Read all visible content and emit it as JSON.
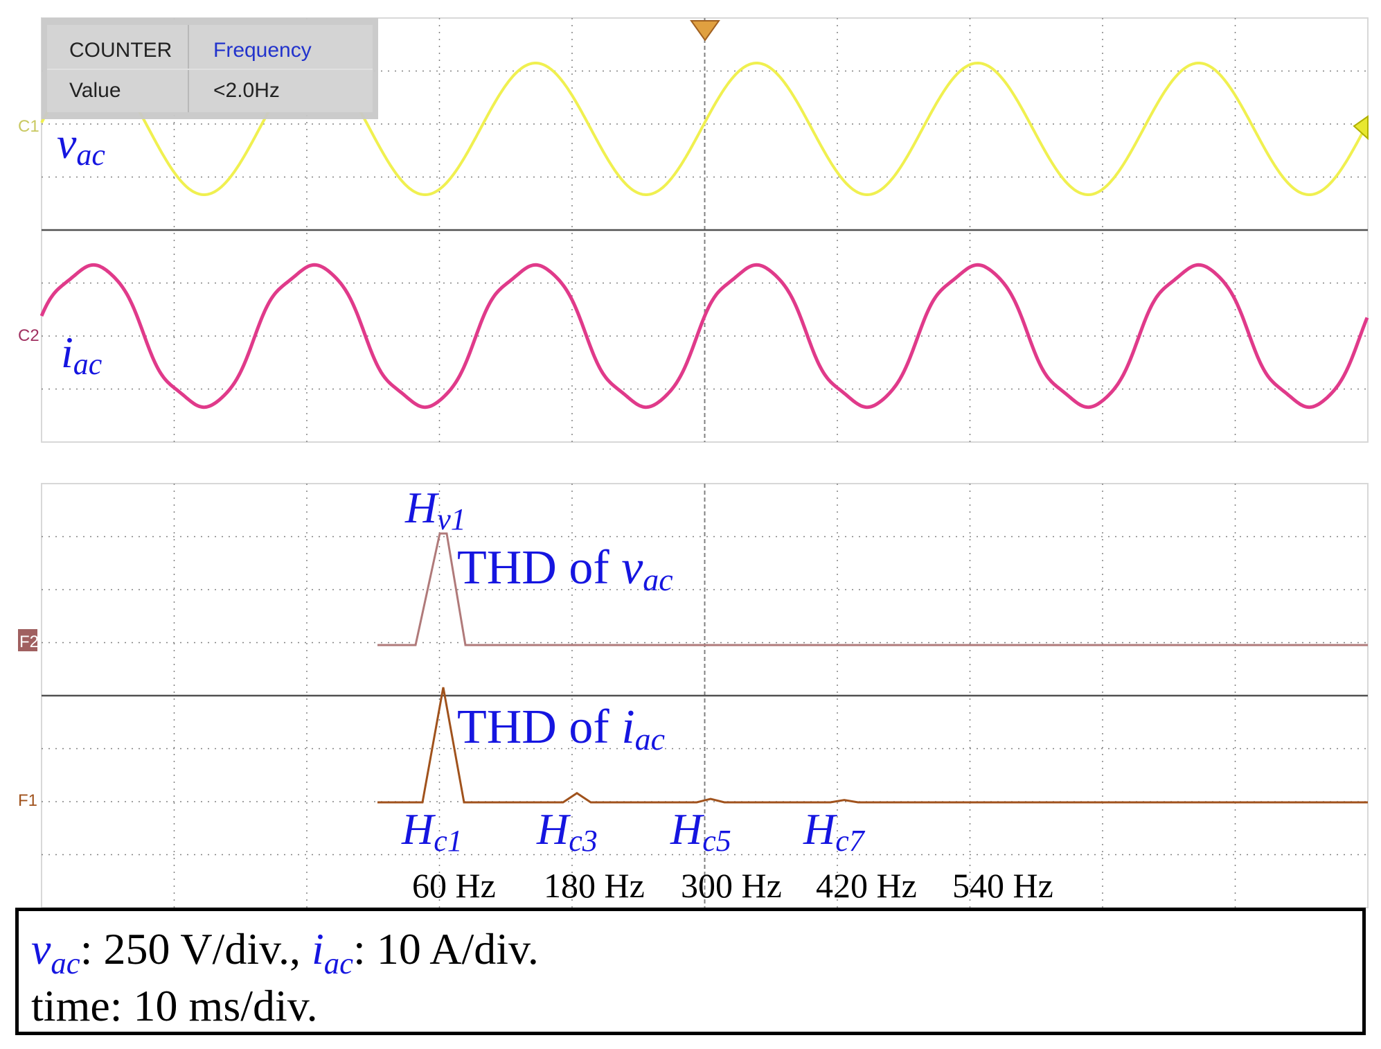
{
  "counter": {
    "col1_header": "COUNTER",
    "col2_header": "Frequency",
    "row_label": "Value",
    "row_value": "<2.0Hz"
  },
  "markers": {
    "c1": "C1",
    "c2": "C2",
    "f2": "F2",
    "f1": "F1"
  },
  "labels": {
    "vac_base": "v",
    "vac_sub": "ac",
    "iac_base": "i",
    "iac_sub": "ac",
    "thd_v_prefix": "THD of ",
    "thd_v_base": "v",
    "thd_v_sub": "ac",
    "thd_i_prefix": "THD of ",
    "thd_i_base": "i",
    "thd_i_sub": "ac",
    "hv1_base": "H",
    "hv1_sub": "v1",
    "hc1_base": "H",
    "hc1_sub": "c1",
    "hc3_base": "H",
    "hc3_sub": "c3",
    "hc5_base": "H",
    "hc5_sub": "c5",
    "hc7_base": "H",
    "hc7_sub": "c7"
  },
  "info": {
    "line1_v": "v",
    "line1_v_sub": "ac",
    "line1_v_text": ": 250 V/div., ",
    "line1_i": "i",
    "line1_i_sub": "ac",
    "line1_i_text": ": 10 A/div.",
    "line2": "time: 10 ms/div."
  },
  "colors": {
    "voltage": "#f0f050",
    "current": "#e03a8a",
    "fft_voltage": "#b07a7a",
    "fft_current": "#a0521c",
    "label_blue": "#1515e0",
    "grid": "#808080",
    "counter_header_blue": "#2233cc"
  },
  "chart_data": [
    {
      "type": "line",
      "name": "vac",
      "x_unit": "ms",
      "x_range": [
        0,
        100
      ],
      "y_unit": "div",
      "amplitude_div": 1.25,
      "frequency_hz": 60,
      "series": [
        {
          "name": "vac",
          "waveform": "sine"
        }
      ]
    },
    {
      "type": "line",
      "name": "iac",
      "x_unit": "ms",
      "x_range": [
        0,
        100
      ],
      "y_unit": "div",
      "amplitude_div": 1.4,
      "frequency_hz": 60,
      "series": [
        {
          "name": "iac",
          "waveform": "distorted-sine"
        }
      ]
    },
    {
      "type": "line",
      "name": "thd-vac",
      "x_unit": "Hz",
      "x": [
        60
      ],
      "peak_labels": [
        "Hv1"
      ],
      "values_relative": [
        1.0
      ]
    },
    {
      "type": "line",
      "name": "thd-iac",
      "x_unit": "Hz",
      "x": [
        60,
        180,
        300,
        420
      ],
      "peak_labels": [
        "Hc1",
        "Hc3",
        "Hc5",
        "Hc7"
      ],
      "values_relative": [
        1.0,
        0.08,
        0.03,
        0.02
      ],
      "tick_labels": [
        "60 Hz",
        "180 Hz",
        "300 Hz",
        "420 Hz",
        "540 Hz"
      ]
    }
  ]
}
